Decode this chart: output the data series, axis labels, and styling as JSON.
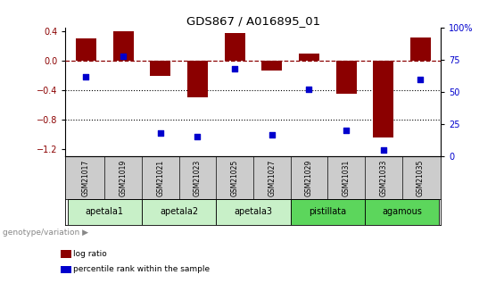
{
  "title": "GDS867 / A016895_01",
  "samples": [
    "GSM21017",
    "GSM21019",
    "GSM21021",
    "GSM21023",
    "GSM21025",
    "GSM21027",
    "GSM21029",
    "GSM21031",
    "GSM21033",
    "GSM21035"
  ],
  "log_ratio": [
    0.3,
    0.4,
    -0.2,
    -0.5,
    0.38,
    -0.13,
    0.1,
    -0.45,
    -1.05,
    0.32
  ],
  "percentile_rank": [
    62,
    78,
    18,
    15,
    68,
    17,
    52,
    20,
    5,
    60
  ],
  "ylim_left": [
    -1.3,
    0.45
  ],
  "ylim_right": [
    0,
    100
  ],
  "yticks_left": [
    0.4,
    0.0,
    -0.4,
    -0.8,
    -1.2
  ],
  "yticks_right": [
    100,
    75,
    50,
    25,
    0
  ],
  "dotted_lines": [
    -0.4,
    -0.8
  ],
  "groups": [
    {
      "name": "apetala1",
      "indices": [
        0,
        1
      ],
      "color": "#c8f0c8"
    },
    {
      "name": "apetala2",
      "indices": [
        2,
        3
      ],
      "color": "#c8f0c8"
    },
    {
      "name": "apetala3",
      "indices": [
        4,
        5
      ],
      "color": "#c8f0c8"
    },
    {
      "name": "pistillata",
      "indices": [
        6,
        7
      ],
      "color": "#5cd65c"
    },
    {
      "name": "agamous",
      "indices": [
        8,
        9
      ],
      "color": "#5cd65c"
    }
  ],
  "bar_color": "#8B0000",
  "dot_color": "#0000CD",
  "bg_color": "#ffffff",
  "sample_bg": "#cccccc",
  "legend_bar_label": "log ratio",
  "legend_dot_label": "percentile rank within the sample",
  "group_label": "genotype/variation"
}
